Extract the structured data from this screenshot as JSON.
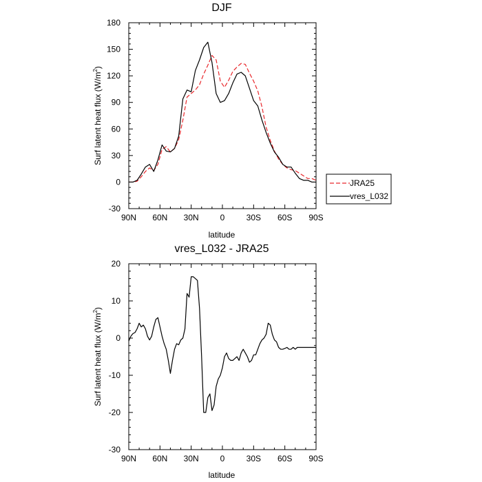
{
  "chart_data": [
    {
      "type": "line",
      "title": "DJF",
      "xlabel": "latitude",
      "ylabel": "Surf latent heat flux (W/m",
      "ylabel_sup": "2",
      "ylabel_end": ")",
      "xlim": [
        90,
        -90
      ],
      "ylim": [
        -30,
        180
      ],
      "xticks": [
        90,
        60,
        30,
        0,
        -30,
        -60,
        -90
      ],
      "xtick_labels": [
        "90N",
        "60N",
        "30N",
        "0",
        "30S",
        "60S",
        "90S"
      ],
      "yticks": [
        -30,
        0,
        30,
        60,
        90,
        120,
        150,
        180
      ],
      "ytick_labels": [
        "-30",
        "0",
        "30",
        "60",
        "90",
        "120",
        "150",
        "180"
      ],
      "legend_position": "right",
      "series": [
        {
          "name": "JRA25",
          "color": "#e8262a",
          "dash": "dashed",
          "x": [
            90,
            86,
            82,
            78,
            74,
            70,
            66,
            62,
            58,
            54,
            50,
            46,
            42,
            38,
            34,
            30,
            26,
            22,
            18,
            14,
            10,
            6,
            2,
            -2,
            -6,
            -10,
            -14,
            -18,
            -22,
            -26,
            -30,
            -34,
            -38,
            -42,
            -46,
            -50,
            -54,
            -58,
            -62,
            -66,
            -70,
            -74,
            -78,
            -82,
            -86,
            -90
          ],
          "y": [
            0,
            0,
            1,
            6,
            12,
            16,
            13,
            20,
            37,
            40,
            34,
            38,
            48,
            70,
            96,
            100,
            104,
            110,
            122,
            132,
            143,
            138,
            114,
            107,
            115,
            125,
            130,
            134,
            133,
            123,
            114,
            103,
            85,
            62,
            47,
            35,
            26,
            20,
            16,
            14,
            13,
            10,
            7,
            4,
            4,
            2
          ]
        },
        {
          "name": "vres_L032",
          "color": "#000000",
          "dash": "solid",
          "x": [
            90,
            86,
            82,
            78,
            74,
            70,
            66,
            62,
            58,
            54,
            50,
            46,
            42,
            38,
            34,
            30,
            26,
            22,
            18,
            14,
            10,
            6,
            2,
            -2,
            -6,
            -10,
            -14,
            -18,
            -22,
            -26,
            -30,
            -34,
            -38,
            -42,
            -46,
            -50,
            -54,
            -58,
            -62,
            -66,
            -70,
            -74,
            -78,
            -82,
            -86,
            -90
          ],
          "y": [
            0,
            0,
            2,
            9,
            17,
            20,
            12,
            25,
            42,
            35,
            34,
            38,
            52,
            94,
            104,
            102,
            126,
            138,
            152,
            158,
            135,
            100,
            90,
            92,
            100,
            112,
            122,
            124,
            120,
            106,
            92,
            86,
            70,
            56,
            44,
            34,
            28,
            20,
            17,
            17,
            10,
            4,
            2,
            2,
            0,
            0
          ]
        }
      ]
    },
    {
      "type": "line",
      "title": "vres_L032 - JRA25",
      "xlabel": "latitude",
      "ylabel": "Surf latent heat flux (W/m",
      "ylabel_sup": "2",
      "ylabel_end": ")",
      "xlim": [
        90,
        -90
      ],
      "ylim": [
        -30,
        20
      ],
      "xticks": [
        90,
        60,
        30,
        0,
        -30,
        -60,
        -90
      ],
      "xtick_labels": [
        "90N",
        "60N",
        "30N",
        "0",
        "30S",
        "60S",
        "90S"
      ],
      "yticks": [
        -30,
        -20,
        -10,
        0,
        10,
        20
      ],
      "ytick_labels": [
        "-30",
        "-20",
        "-10",
        "0",
        "10",
        "20"
      ],
      "series": [
        {
          "color": "#000000",
          "dash": "solid",
          "x": [
            90,
            88,
            86,
            84,
            82,
            80,
            78,
            76,
            74,
            72,
            70,
            68,
            66,
            64,
            62,
            60,
            58,
            56,
            54,
            52,
            50,
            48,
            46,
            44,
            42,
            40,
            38,
            36,
            34,
            32,
            30,
            28,
            26,
            24,
            22,
            20,
            18,
            16,
            14,
            12,
            10,
            8,
            6,
            4,
            2,
            0,
            -2,
            -4,
            -6,
            -8,
            -10,
            -12,
            -14,
            -16,
            -18,
            -20,
            -22,
            -24,
            -26,
            -28,
            -30,
            -32,
            -34,
            -36,
            -38,
            -40,
            -42,
            -44,
            -46,
            -48,
            -50,
            -52,
            -54,
            -56,
            -58,
            -60,
            -62,
            -64,
            -66,
            -68,
            -70,
            -72,
            -74,
            -76,
            -78,
            -80,
            -82,
            -84,
            -86,
            -88,
            -90
          ],
          "y": [
            -0.8,
            0.5,
            1.2,
            1.5,
            2.5,
            4.0,
            3.0,
            3.5,
            2.5,
            0.5,
            -0.5,
            0.5,
            3.0,
            5.0,
            5.5,
            3.0,
            0.5,
            -1.5,
            -3.0,
            -6.0,
            -9.5,
            -6.0,
            -3.0,
            -1.5,
            -1.8,
            -0.5,
            0.0,
            2.5,
            12.0,
            11.0,
            16.5,
            16.5,
            16.0,
            15.5,
            8.0,
            -5.0,
            -20.0,
            -20.0,
            -16.0,
            -15.0,
            -19.5,
            -18.0,
            -13.0,
            -11.0,
            -10.0,
            -8.0,
            -5.0,
            -4.0,
            -5.5,
            -6.0,
            -6.0,
            -5.5,
            -5.0,
            -6.0,
            -4.0,
            -3.0,
            -4.0,
            -5.0,
            -6.5,
            -6.0,
            -4.5,
            -4.5,
            -3.0,
            -1.5,
            -0.5,
            0.0,
            1.0,
            4.0,
            3.5,
            1.0,
            -0.5,
            -1.0,
            -2.5,
            -3.0,
            -3.0,
            -2.8,
            -2.5,
            -3.0,
            -3.0,
            -2.5,
            -3.0,
            -2.5,
            -2.5,
            -2.5,
            -2.5,
            -2.5,
            -2.5,
            -2.5,
            -2.5,
            -2.5,
            -2.5
          ]
        }
      ]
    }
  ]
}
